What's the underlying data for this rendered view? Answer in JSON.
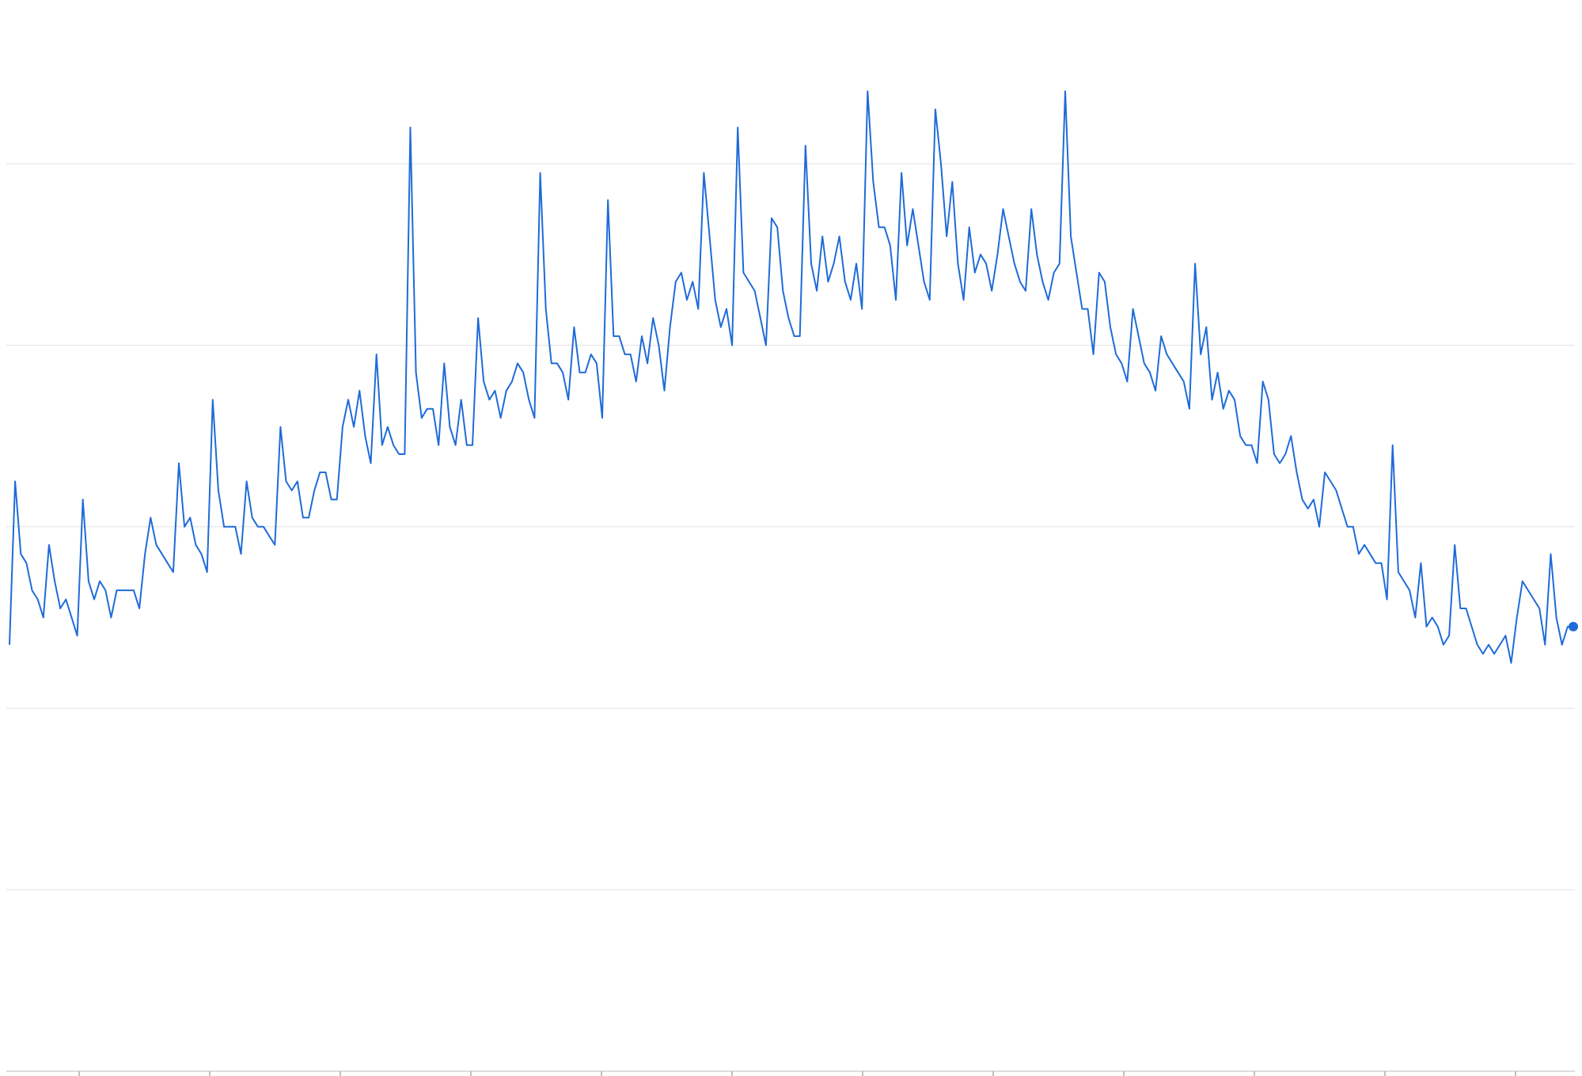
{
  "chart_data": {
    "type": "line",
    "title": "",
    "xlabel": "",
    "ylabel": "",
    "ylim": [
      0,
      110
    ],
    "y_gridlines": [
      0,
      20,
      40,
      60,
      80,
      100
    ],
    "grid": true,
    "legend": "none",
    "x_tick_count": 12,
    "colors": {
      "line": "#1f6bd8",
      "grid": "#e8e8e8",
      "axis": "#dddddd",
      "tick": "#aaaaaa"
    },
    "last_point_marker": true,
    "series": [
      {
        "values": [
          47,
          65,
          57,
          56,
          53,
          52,
          50,
          58,
          54,
          51,
          52,
          50,
          48,
          63,
          54,
          52,
          54,
          53,
          50,
          53,
          53,
          53,
          53,
          51,
          57,
          61,
          58,
          57,
          56,
          55,
          67,
          60,
          61,
          58,
          57,
          55,
          74,
          64,
          60,
          60,
          60,
          57,
          65,
          61,
          60,
          60,
          59,
          58,
          71,
          65,
          64,
          65,
          61,
          61,
          64,
          66,
          66,
          63,
          63,
          71,
          74,
          71,
          75,
          70,
          67,
          79,
          69,
          71,
          69,
          68,
          68,
          104,
          77,
          72,
          73,
          73,
          69,
          78,
          71,
          69,
          74,
          69,
          69,
          83,
          76,
          74,
          75,
          72,
          75,
          76,
          78,
          77,
          74,
          72,
          99,
          84,
          78,
          78,
          77,
          74,
          82,
          77,
          77,
          79,
          78,
          72,
          96,
          81,
          81,
          79,
          79,
          76,
          81,
          78,
          83,
          80,
          75,
          82,
          87,
          88,
          85,
          87,
          84,
          99,
          92,
          85,
          82,
          84,
          80,
          104,
          88,
          87,
          86,
          83,
          80,
          94,
          93,
          86,
          83,
          81,
          81,
          102,
          89,
          86,
          92,
          87,
          89,
          92,
          87,
          85,
          89,
          84,
          108,
          98,
          93,
          93,
          91,
          85,
          99,
          91,
          95,
          91,
          87,
          85,
          106,
          100,
          92,
          98,
          89,
          85,
          93,
          88,
          90,
          89,
          86,
          90,
          95,
          92,
          89,
          87,
          86,
          95,
          90,
          87,
          85,
          88,
          89,
          108,
          92,
          88,
          84,
          84,
          79,
          88,
          87,
          82,
          79,
          78,
          76,
          84,
          81,
          78,
          77,
          75,
          81,
          79,
          78,
          77,
          76,
          73,
          89,
          79,
          82,
          74,
          77,
          73,
          75,
          74,
          70,
          69,
          69,
          67,
          76,
          74,
          68,
          67,
          68,
          70,
          66,
          63,
          62,
          63,
          60,
          66,
          65,
          64,
          62,
          60,
          60,
          57,
          58,
          57,
          56,
          56,
          52,
          69,
          55,
          54,
          53,
          50,
          56,
          49,
          50,
          49,
          47,
          48,
          58,
          51,
          51,
          49,
          47,
          46,
          47,
          46,
          47,
          48,
          45,
          50,
          54,
          53,
          52,
          51,
          47,
          57,
          50,
          47,
          49,
          49
        ]
      }
    ]
  }
}
